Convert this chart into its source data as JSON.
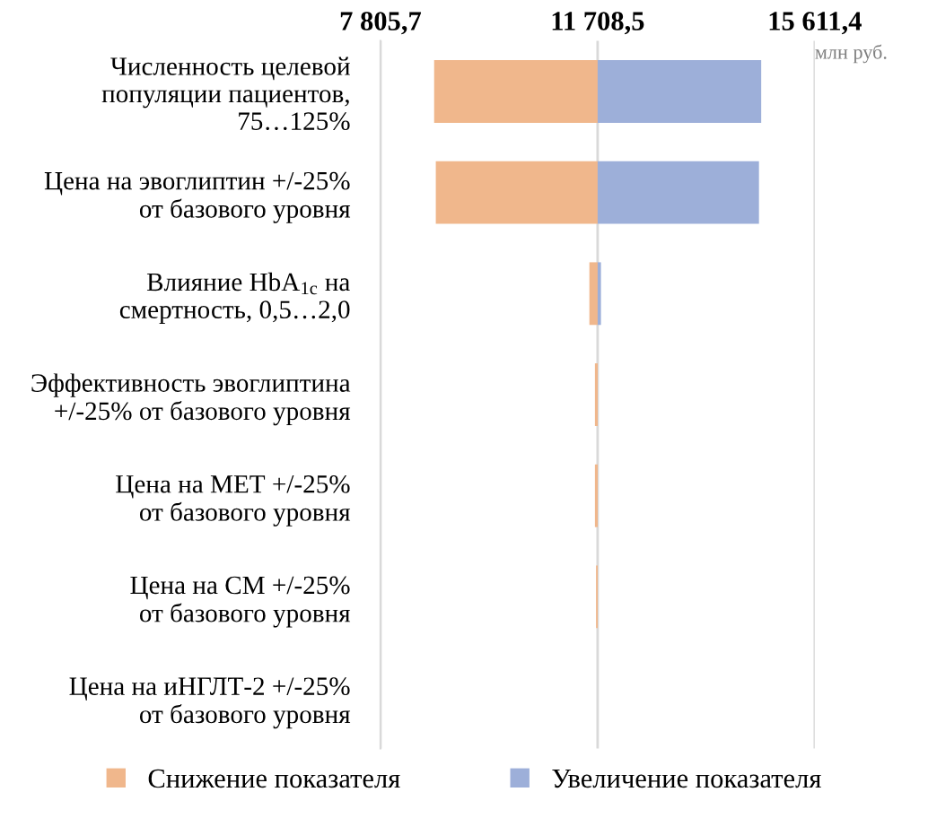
{
  "chart_data": {
    "type": "bar",
    "orientation": "horizontal",
    "xlabel": "млн руб.",
    "categories": [
      "Численность целевой\nпопуляции пациентов,\n75…125%",
      "Цена на эвоглиптин +/-25%\nот базового уровня",
      "Влияние HbA$_{1c}$ на\nсмертность, 0,5…2,0",
      "Эффективность эвоглиптина\n+/-25% от базового уровня",
      "Цена на МЕТ +/-25%\nот базового уровня",
      "Цена на СМ +/-25%\nот базового уровня",
      "Цена на иНГЛТ-2 +/-25%\nот базового уровня"
    ],
    "series": [
      {
        "name": "Снижение показателя",
        "color": "#f0b78c",
        "base": [
          8770,
          8800,
          11560,
          11660,
          11660,
          11680,
          null
        ],
        "values": [
          2940,
          2910,
          150,
          50,
          50,
          30,
          null
        ]
      },
      {
        "name": "Увеличение показателя",
        "color": "#9dafd9",
        "base": [
          11708.5,
          11708.5,
          11708.5,
          null,
          null,
          null,
          null
        ],
        "values": [
          2940,
          2900,
          60,
          null,
          null,
          null,
          null
        ]
      }
    ],
    "xlim": [
      7805.7,
      15611.4
    ],
    "xticks": [
      {
        "value": 7805.7,
        "label": "7 805,7"
      },
      {
        "value": 11708.5,
        "label": "11 708,5"
      },
      {
        "value": 15611.4,
        "label": "15 611,4"
      }
    ],
    "grid": "x",
    "legend": "bottom"
  }
}
